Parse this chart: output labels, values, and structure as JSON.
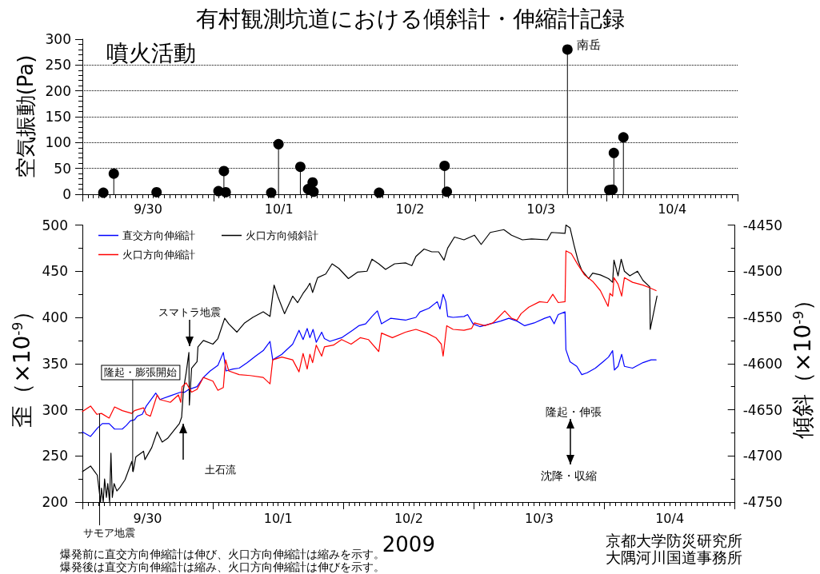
{
  "chart_data": [
    {
      "type": "lollipop",
      "title": "有村観測坑道における傾斜計・伸縮計記録",
      "ylabel": "空気振動(Pa)",
      "x": [
        "2009-09-30T03:50",
        "2009-09-30T05:45",
        "2009-09-30T13:35",
        "2009-10-01T00:55",
        "2009-10-01T01:55",
        "2009-10-01T02:15",
        "2009-10-01T10:35",
        "2009-10-01T11:55",
        "2009-10-01T15:55",
        "2009-10-01T17:20",
        "2009-10-01T18:10",
        "2009-10-01T18:20",
        "2009-10-02T06:20",
        "2009-10-02T18:20",
        "2009-10-02T18:45",
        "2009-10-03T16:50",
        "2009-10-04T00:30",
        "2009-10-04T01:05",
        "2009-10-04T01:20",
        "2009-10-04T03:05"
      ],
      "values": [
        3,
        40,
        4,
        6,
        45,
        4,
        3,
        97,
        53,
        10,
        23,
        5,
        3,
        55,
        5,
        280,
        8,
        9,
        80,
        110
      ],
      "color": "#000000",
      "marker": "circle",
      "grid": "y",
      "xlim": [
        "2009-09-30T00:00",
        "2009-10-05T00:00"
      ],
      "xticks": [
        {
          "value": "2009-09-30T00:00",
          "label": null
        },
        {
          "value": "2009-09-30T12:00",
          "label": "9/30"
        },
        {
          "value": "2009-10-01T00:00",
          "label": null
        },
        {
          "value": "2009-10-01T12:00",
          "label": "10/1"
        },
        {
          "value": "2009-10-02T00:00",
          "label": null
        },
        {
          "value": "2009-10-02T12:00",
          "label": "10/2"
        },
        {
          "value": "2009-10-03T00:00",
          "label": null
        },
        {
          "value": "2009-10-03T12:00",
          "label": "10/3"
        },
        {
          "value": "2009-10-04T00:00",
          "label": null
        },
        {
          "value": "2009-10-04T12:00",
          "label": "10/4"
        },
        {
          "value": "2009-10-05T00:00",
          "label": null
        }
      ],
      "ylim": [
        0,
        300
      ],
      "yticks": [
        0,
        50,
        100,
        150,
        200,
        250,
        300
      ],
      "annotations": [
        "噴火活動",
        {
          "text": "南岳",
          "x": "2009-10-03T16:50",
          "y": 280
        }
      ]
    },
    {
      "type": "line",
      "xlabel": "2009",
      "ylabel": "歪（×10$^{-9}$）",
      "y2label": "傾斜（×10$^{-9}$）",
      "legend": "top left",
      "xlim": [
        "2009-09-30T00:00",
        "2009-10-05T00:00"
      ],
      "xticks": [
        {
          "value": "2009-09-30T00:00",
          "label": null
        },
        {
          "value": "2009-09-30T12:00",
          "label": "9/30"
        },
        {
          "value": "2009-10-01T00:00",
          "label": null
        },
        {
          "value": "2009-10-01T12:00",
          "label": "10/1"
        },
        {
          "value": "2009-10-02T00:00",
          "label": null
        },
        {
          "value": "2009-10-02T12:00",
          "label": "10/2"
        },
        {
          "value": "2009-10-03T00:00",
          "label": null
        },
        {
          "value": "2009-10-03T12:00",
          "label": "10/3"
        },
        {
          "value": "2009-10-04T00:00",
          "label": null
        },
        {
          "value": "2009-10-04T12:00",
          "label": "10/4"
        },
        {
          "value": "2009-10-05T00:00",
          "label": null
        }
      ],
      "ylim": [
        200,
        500
      ],
      "yticks": [
        200,
        250,
        300,
        350,
        400,
        450,
        500
      ],
      "y2lim": [
        -4750,
        -4450
      ],
      "y2ticks": [
        -4750,
        -4700,
        -4650,
        -4600,
        -4550,
        -4500,
        -4450
      ],
      "series": [
        {
          "name": "直交方向伸縮計",
          "color": "#0000ff",
          "x": [
            "2009-09-30T00:00",
            "2009-09-30T01:30",
            "2009-09-30T02:45",
            "2009-09-30T03:40",
            "2009-09-30T04:55",
            "2009-09-30T05:55",
            "2009-09-30T07:20",
            "2009-09-30T08:05",
            "2009-09-30T08:50",
            "2009-09-30T09:35",
            "2009-09-30T10:05",
            "2009-09-30T11:00",
            "2009-09-30T11:45",
            "2009-09-30T12:45",
            "2009-09-30T13:30",
            "2009-09-30T14:15",
            "2009-09-30T16:10",
            "2009-09-30T18:05",
            "2009-09-30T18:50",
            "2009-09-30T19:35",
            "2009-09-30T21:05",
            "2009-09-30T22:15",
            "2009-09-30T23:30",
            "2009-10-01T00:55",
            "2009-10-01T01:55",
            "2009-10-01T02:25",
            "2009-10-01T03:40",
            "2009-10-01T04:50",
            "2009-10-01T06:20",
            "2009-10-01T07:50",
            "2009-10-01T09:15",
            "2009-10-01T10:30",
            "2009-10-01T11:00",
            "2009-10-01T12:40",
            "2009-10-01T14:40",
            "2009-10-01T15:50",
            "2009-10-01T16:35",
            "2009-10-01T17:20",
            "2009-10-01T17:50",
            "2009-10-01T18:25",
            "2009-10-01T19:00",
            "2009-10-01T20:00",
            "2009-10-01T20:30",
            "2009-10-01T21:30",
            "2009-10-01T23:40",
            "2009-10-02T01:40",
            "2009-10-02T02:50",
            "2009-10-02T04:05",
            "2009-10-02T05:15",
            "2009-10-02T06:15",
            "2009-10-02T07:00",
            "2009-10-02T08:40",
            "2009-10-02T11:25",
            "2009-10-02T13:20",
            "2009-10-02T14:05",
            "2009-10-02T15:45",
            "2009-10-02T17:15",
            "2009-10-02T17:45",
            "2009-10-02T18:20",
            "2009-10-02T18:50",
            "2009-10-02T19:10",
            "2009-10-02T20:10",
            "2009-10-02T22:10",
            "2009-10-02T22:50",
            "2009-10-02T23:50",
            "2009-10-03T01:05",
            "2009-10-03T03:00",
            "2009-10-03T04:55",
            "2009-10-03T06:25",
            "2009-10-03T07:55",
            "2009-10-03T09:20",
            "2009-10-03T11:05",
            "2009-10-03T13:00",
            "2009-10-03T14:00",
            "2009-10-03T14:45",
            "2009-10-03T15:30",
            "2009-10-03T16:45",
            "2009-10-03T16:55",
            "2009-10-03T17:40",
            "2009-10-03T18:55",
            "2009-10-03T19:50",
            "2009-10-03T20:50",
            "2009-10-03T22:20",
            "2009-10-03T23:45",
            "2009-10-04T00:45",
            "2009-10-04T01:30",
            "2009-10-04T01:50",
            "2009-10-04T02:30",
            "2009-10-04T03:10",
            "2009-10-04T03:40",
            "2009-10-04T05:10",
            "2009-10-04T07:05",
            "2009-10-04T08:35",
            "2009-10-04T09:30"
          ],
          "values": [
            276,
            271,
            280,
            285,
            285,
            279,
            279,
            283,
            288,
            289,
            293,
            295,
            304,
            312,
            318,
            311,
            315,
            319,
            319,
            322,
            325,
            335,
            342,
            348,
            362,
            342,
            344,
            345,
            351,
            358,
            364,
            374,
            354,
            360,
            371,
            386,
            376,
            388,
            378,
            387,
            373,
            384,
            377,
            374,
            378,
            386,
            391,
            393,
            401,
            407,
            393,
            399,
            397,
            400,
            406,
            410,
            417,
            409,
            425,
            417,
            401,
            400,
            401,
            403,
            393,
            390,
            393,
            396,
            399,
            396,
            391,
            394,
            399,
            401,
            393,
            403,
            406,
            365,
            352,
            347,
            338,
            340,
            345,
            352,
            357,
            364,
            343,
            347,
            360,
            347,
            345,
            351,
            354,
            354
          ]
        },
        {
          "name": "火口方向傾斜計",
          "color": "#000000",
          "axis": "y2",
          "x": [
            "2009-09-30T00:00",
            "2009-09-30T01:30",
            "2009-09-30T02:15",
            "2009-09-30T02:45",
            "2009-09-30T03:20",
            "2009-09-30T03:30",
            "2009-09-30T03:50",
            "2009-09-30T04:05",
            "2009-09-30T04:25",
            "2009-09-30T04:40",
            "2009-09-30T05:00",
            "2009-09-30T05:15",
            "2009-09-30T05:30",
            "2009-09-30T05:50",
            "2009-09-30T06:20",
            "2009-09-30T06:55",
            "2009-09-30T07:50",
            "2009-09-30T09:05",
            "2009-09-30T09:20",
            "2009-09-30T09:50",
            "2009-09-30T11:15",
            "2009-09-30T11:30",
            "2009-09-30T12:45",
            "2009-09-30T13:45",
            "2009-09-30T14:40",
            "2009-09-30T15:40",
            "2009-09-30T17:25",
            "2009-09-30T17:50",
            "2009-09-30T18:15",
            "2009-09-30T18:35",
            "2009-09-30T19:05",
            "2009-09-30T19:35",
            "2009-09-30T19:40",
            "2009-09-30T20:05",
            "2009-09-30T21:05",
            "2009-09-30T21:15",
            "2009-09-30T22:15",
            "2009-10-01T00:00",
            "2009-10-01T00:55",
            "2009-10-01T02:10",
            "2009-10-01T02:55",
            "2009-10-01T04:25",
            "2009-10-01T05:50",
            "2009-10-01T07:20",
            "2009-10-01T09:15",
            "2009-10-01T10:30",
            "2009-10-01T11:15",
            "2009-10-01T11:55",
            "2009-10-01T13:10",
            "2009-10-01T14:40",
            "2009-10-01T15:35",
            "2009-10-01T16:35",
            "2009-10-01T17:20",
            "2009-10-01T17:50",
            "2009-10-01T18:20",
            "2009-10-01T19:15",
            "2009-10-01T20:45",
            "2009-10-01T21:55",
            "2009-10-01T23:10",
            "2009-10-02T00:55",
            "2009-10-02T02:35",
            "2009-10-02T04:20",
            "2009-10-02T05:15",
            "2009-10-02T06:30",
            "2009-10-02T07:45",
            "2009-10-02T09:25",
            "2009-10-02T11:25",
            "2009-10-02T12:35",
            "2009-10-02T13:20",
            "2009-10-02T14:50",
            "2009-10-02T16:15",
            "2009-10-02T17:30",
            "2009-10-02T18:30",
            "2009-10-02T19:10",
            "2009-10-02T20:25",
            "2009-10-02T22:10",
            "2009-10-03T00:05",
            "2009-10-03T01:20",
            "2009-10-03T03:00",
            "2009-10-03T05:30",
            "2009-10-03T06:55",
            "2009-10-03T08:55",
            "2009-10-03T10:35",
            "2009-10-03T13:30",
            "2009-10-03T14:15",
            "2009-10-03T16:45",
            "2009-10-03T16:55",
            "2009-10-03T17:40",
            "2009-10-03T18:25",
            "2009-10-03T19:10",
            "2009-10-03T19:50",
            "2009-10-03T21:05",
            "2009-10-03T21:50",
            "2009-10-03T23:15",
            "2009-10-04T00:45",
            "2009-10-04T01:30",
            "2009-10-04T01:45",
            "2009-10-04T02:30",
            "2009-10-04T03:05",
            "2009-10-04T03:40",
            "2009-10-04T04:40",
            "2009-10-04T06:05",
            "2009-10-04T07:05",
            "2009-10-04T08:20",
            "2009-10-04T08:25",
            "2009-10-04T09:40"
          ],
          "values": [
            -4717,
            -4711,
            -4717,
            -4721,
            -4750,
            -4735,
            -4750,
            -4725,
            -4745,
            -4730,
            -4750,
            -4697,
            -4745,
            -4730,
            -4738,
            -4734,
            -4726,
            -4706,
            -4717,
            -4701,
            -4695,
            -4704,
            -4691,
            -4674,
            -4685,
            -4681,
            -4668,
            -4665,
            -4658,
            -4628,
            -4610,
            -4588,
            -4645,
            -4605,
            -4598,
            -4582,
            -4575,
            -4579,
            -4573,
            -4551,
            -4557,
            -4566,
            -4556,
            -4550,
            -4544,
            -4549,
            -4515,
            -4527,
            -4546,
            -4527,
            -4534,
            -4524,
            -4518,
            -4513,
            -4523,
            -4507,
            -4503,
            -4492,
            -4497,
            -4508,
            -4501,
            -4500,
            -4487,
            -4492,
            -4498,
            -4492,
            -4491,
            -4494,
            -4484,
            -4476,
            -4479,
            -4479,
            -4488,
            -4475,
            -4463,
            -4466,
            -4461,
            -4471,
            -4458,
            -4455,
            -4461,
            -4466,
            -4465,
            -4466,
            -4458,
            -4459,
            -4450,
            -4453,
            -4472,
            -4489,
            -4499,
            -4508,
            -4502,
            -4504,
            -4508,
            -4512,
            -4488,
            -4505,
            -4487,
            -4500,
            -4505,
            -4500,
            -4510,
            -4517,
            -4563,
            -4527
          ]
        },
        {
          "name": "火口方向伸縮計",
          "color": "#ff0000",
          "x": [
            "2009-09-30T00:00",
            "2009-09-30T01:30",
            "2009-09-30T02:40",
            "2009-09-30T03:30",
            "2009-09-30T04:55",
            "2009-09-30T05:55",
            "2009-09-30T07:20",
            "2009-09-30T09:05",
            "2009-09-30T09:35",
            "2009-09-30T11:15",
            "2009-09-30T11:45",
            "2009-09-30T12:30",
            "2009-09-30T13:45",
            "2009-09-30T14:15",
            "2009-09-30T16:10",
            "2009-09-30T17:40",
            "2009-09-30T18:05",
            "2009-09-30T18:20",
            "2009-09-30T19:05",
            "2009-09-30T20:05",
            "2009-09-30T21:05",
            "2009-09-30T22:15",
            "2009-10-01T00:00",
            "2009-10-01T00:55",
            "2009-10-01T01:55",
            "2009-10-01T02:20",
            "2009-10-01T02:55",
            "2009-10-01T04:50",
            "2009-10-01T06:50",
            "2009-10-01T09:15",
            "2009-10-01T10:30",
            "2009-10-01T11:00",
            "2009-10-01T12:40",
            "2009-10-01T14:40",
            "2009-10-01T15:50",
            "2009-10-01T16:35",
            "2009-10-01T17:20",
            "2009-10-01T17:50",
            "2009-10-01T18:20",
            "2009-10-01T19:00",
            "2009-10-01T20:00",
            "2009-10-01T20:30",
            "2009-10-01T22:10",
            "2009-10-01T23:40",
            "2009-10-02T01:25",
            "2009-10-02T03:05",
            "2009-10-02T04:35",
            "2009-10-02T06:30",
            "2009-10-02T07:00",
            "2009-10-02T09:00",
            "2009-10-02T11:25",
            "2009-10-02T13:20",
            "2009-10-02T15:20",
            "2009-10-02T17:00",
            "2009-10-02T18:00",
            "2009-10-02T18:20",
            "2009-10-02T19:00",
            "2009-10-02T20:10",
            "2009-10-02T22:10",
            "2009-10-02T23:35",
            "2009-10-03T00:05",
            "2009-10-03T02:00",
            "2009-10-03T03:30",
            "2009-10-03T04:30",
            "2009-10-03T05:40",
            "2009-10-03T06:55",
            "2009-10-03T07:55",
            "2009-10-03T08:40",
            "2009-10-03T10:05",
            "2009-10-03T12:05",
            "2009-10-03T13:30",
            "2009-10-03T14:30",
            "2009-10-03T15:30",
            "2009-10-03T16:45",
            "2009-10-03T16:55",
            "2009-10-03T17:55",
            "2009-10-03T18:55",
            "2009-10-03T20:20",
            "2009-10-03T21:50",
            "2009-10-03T23:15",
            "2009-10-04T00:40",
            "2009-10-04T01:00",
            "2009-10-04T01:30",
            "2009-10-04T01:45",
            "2009-10-04T02:30",
            "2009-10-04T03:10",
            "2009-10-04T03:40",
            "2009-10-04T05:10",
            "2009-10-04T07:05",
            "2009-10-04T08:20",
            "2009-10-04T09:30"
          ],
          "values": [
            298,
            304,
            295,
            296,
            291,
            303,
            299,
            296,
            299,
            302,
            295,
            293,
            316,
            311,
            308,
            316,
            308,
            325,
            329,
            319,
            322,
            335,
            331,
            321,
            324,
            354,
            342,
            338,
            337,
            335,
            328,
            354,
            357,
            354,
            341,
            361,
            344,
            360,
            351,
            370,
            358,
            368,
            370,
            376,
            371,
            378,
            376,
            363,
            383,
            378,
            384,
            387,
            383,
            378,
            371,
            358,
            391,
            387,
            386,
            388,
            394,
            391,
            394,
            400,
            407,
            399,
            397,
            404,
            411,
            417,
            416,
            425,
            416,
            417,
            472,
            469,
            459,
            446,
            439,
            429,
            412,
            426,
            423,
            443,
            436,
            423,
            443,
            438,
            435,
            432,
            429
          ]
        }
      ],
      "annotations": [
        "スマトラ地震",
        {
          "text": "隆起・膨張開始",
          "x": "2009-09-30T09:15",
          "y": 233
        },
        "土石流",
        {
          "text": "サモア地震",
          "x": "2009-09-30T03:10",
          "y": 296
        },
        "隆起・伸張",
        "沈降・収縮",
        "京都大学防災研究所",
        "大隅河川国道事務所",
        "爆発前に直交方向伸縮計は伸び、火口方向伸縮計は縮みを示す。",
        "爆発後は直交方向伸縮計は縮み、火口方向伸縮計は伸びを示す。"
      ]
    }
  ]
}
